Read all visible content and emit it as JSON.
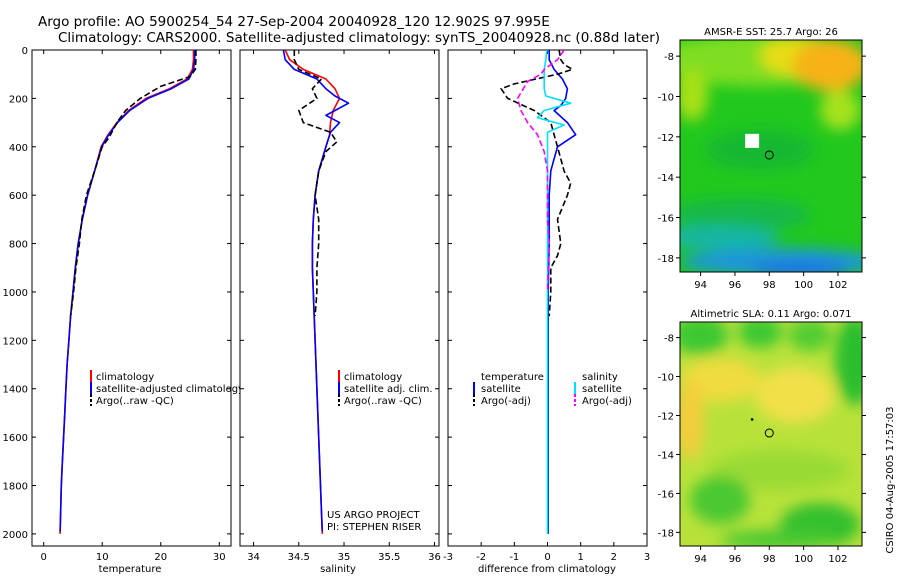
{
  "header": {
    "title_line1": "Argo profile: AO 5900254_54 27-Sep-2004 20040928_120 12.902S 97.995E",
    "title_line2": "Climatology: CARS2000. Satellite-adjusted climatology: synTS_20040928.nc (0.88d later)"
  },
  "footer": {
    "credit": "CSIRO 04-Aug-2005 17:57:03",
    "project_line1": "US ARGO PROJECT",
    "project_line2": "PI: STEPHEN RISER"
  },
  "colors": {
    "climatology": "#ff0000",
    "satellite": "#0000ff",
    "argo": "#000000",
    "salinity_satellite": "#00e0ff",
    "salinity_argo": "#ff00ff"
  },
  "chart_data": [
    {
      "type": "line",
      "id": "temperature",
      "xlabel": "temperature",
      "ylabel": "",
      "xlim": [
        -2,
        32
      ],
      "ylim": [
        2050,
        0
      ],
      "xticks": [
        0,
        10,
        20,
        30
      ],
      "yticks": [
        0,
        200,
        400,
        600,
        800,
        1000,
        1200,
        1400,
        1600,
        1800,
        2000
      ],
      "legend": [
        "climatology",
        "satellite-adjusted climatology",
        "Argo(..raw -QC)"
      ],
      "series": [
        {
          "name": "climatology",
          "style": "solid",
          "color": "#ff0000",
          "points": [
            [
              25.6,
              0
            ],
            [
              25.6,
              40
            ],
            [
              25.4,
              80
            ],
            [
              24.5,
              120
            ],
            [
              21.5,
              160
            ],
            [
              17.5,
              200
            ],
            [
              14.5,
              250
            ],
            [
              12.5,
              300
            ],
            [
              11,
              350
            ],
            [
              9.8,
              400
            ],
            [
              8.7,
              500
            ],
            [
              7.5,
              600
            ],
            [
              6.6,
              700
            ],
            [
              5.9,
              800
            ],
            [
              5.4,
              900
            ],
            [
              5,
              1000
            ],
            [
              4.6,
              1100
            ],
            [
              4.3,
              1200
            ],
            [
              4,
              1300
            ],
            [
              3.8,
              1400
            ],
            [
              3.6,
              1500
            ],
            [
              3.4,
              1600
            ],
            [
              3.2,
              1700
            ],
            [
              3,
              1800
            ],
            [
              2.9,
              1900
            ],
            [
              2.8,
              2000
            ]
          ]
        },
        {
          "name": "satellite-adjusted climatology",
          "style": "solid",
          "color": "#0000ff",
          "points": [
            [
              25.8,
              0
            ],
            [
              25.8,
              40
            ],
            [
              25.6,
              80
            ],
            [
              24.8,
              120
            ],
            [
              21.8,
              160
            ],
            [
              17.8,
              200
            ],
            [
              14.7,
              250
            ],
            [
              12.6,
              300
            ],
            [
              11.1,
              350
            ],
            [
              9.9,
              400
            ],
            [
              8.7,
              500
            ],
            [
              7.5,
              600
            ],
            [
              6.6,
              700
            ],
            [
              5.9,
              800
            ],
            [
              5.4,
              900
            ],
            [
              5,
              1000
            ],
            [
              4.6,
              1100
            ],
            [
              4.3,
              1200
            ],
            [
              4,
              1300
            ],
            [
              3.8,
              1400
            ],
            [
              3.6,
              1500
            ],
            [
              3.4,
              1600
            ],
            [
              3.2,
              1700
            ],
            [
              3,
              1800
            ],
            [
              2.9,
              1900
            ],
            [
              2.8,
              1990
            ]
          ]
        },
        {
          "name": "Argo(..raw -QC)",
          "style": "dashed",
          "color": "#000000",
          "points": [
            [
              26,
              0
            ],
            [
              26,
              40
            ],
            [
              25.9,
              80
            ],
            [
              25,
              110
            ],
            [
              20,
              150
            ],
            [
              16.5,
              200
            ],
            [
              14,
              250
            ],
            [
              12.5,
              300
            ],
            [
              11.2,
              360
            ],
            [
              10,
              400
            ],
            [
              8.7,
              500
            ],
            [
              7.3,
              600
            ],
            [
              6.5,
              700
            ],
            [
              6.1,
              800
            ],
            [
              5.5,
              900
            ],
            [
              5.1,
              1000
            ],
            [
              4.6,
              1100
            ]
          ]
        }
      ]
    },
    {
      "type": "line",
      "id": "salinity",
      "xlabel": "salinity",
      "ylabel": "",
      "xlim": [
        33.85,
        36.05
      ],
      "ylim": [
        2050,
        0
      ],
      "xticks": [
        34,
        34.5,
        35,
        35.5,
        36
      ],
      "yticks": [
        0,
        200,
        400,
        600,
        800,
        1000,
        1200,
        1400,
        1600,
        1800,
        2000
      ],
      "legend": [
        "climatology",
        "satellite adj. clim.",
        "Argo(..raw -QC)"
      ],
      "series": [
        {
          "name": "climatology",
          "style": "solid",
          "color": "#ff0000",
          "points": [
            [
              34.35,
              0
            ],
            [
              34.4,
              40
            ],
            [
              34.55,
              80
            ],
            [
              34.8,
              120
            ],
            [
              34.9,
              160
            ],
            [
              34.95,
              200
            ],
            [
              34.88,
              250
            ],
            [
              34.85,
              300
            ],
            [
              34.84,
              350
            ],
            [
              34.8,
              400
            ],
            [
              34.72,
              500
            ],
            [
              34.68,
              600
            ],
            [
              34.66,
              700
            ],
            [
              34.65,
              800
            ],
            [
              34.65,
              900
            ],
            [
              34.66,
              1000
            ],
            [
              34.67,
              1100
            ],
            [
              34.68,
              1200
            ],
            [
              34.69,
              1300
            ],
            [
              34.7,
              1400
            ],
            [
              34.71,
              1500
            ],
            [
              34.72,
              1600
            ],
            [
              34.73,
              1700
            ],
            [
              34.74,
              1800
            ],
            [
              34.75,
              1900
            ],
            [
              34.76,
              2000
            ]
          ]
        },
        {
          "name": "satellite adj. clim.",
          "style": "solid",
          "color": "#0000ff",
          "points": [
            [
              34.33,
              0
            ],
            [
              34.35,
              40
            ],
            [
              34.45,
              80
            ],
            [
              34.7,
              120
            ],
            [
              34.8,
              160
            ],
            [
              34.9,
              190
            ],
            [
              35.05,
              220
            ],
            [
              34.9,
              250
            ],
            [
              34.8,
              270
            ],
            [
              34.95,
              300
            ],
            [
              34.85,
              340
            ],
            [
              34.8,
              400
            ],
            [
              34.72,
              500
            ],
            [
              34.68,
              600
            ],
            [
              34.66,
              700
            ],
            [
              34.65,
              800
            ],
            [
              34.65,
              900
            ],
            [
              34.66,
              1000
            ],
            [
              34.67,
              1100
            ],
            [
              34.68,
              1200
            ],
            [
              34.69,
              1300
            ],
            [
              34.7,
              1400
            ],
            [
              34.71,
              1500
            ],
            [
              34.72,
              1600
            ],
            [
              34.73,
              1700
            ],
            [
              34.74,
              1800
            ],
            [
              34.75,
              1900
            ],
            [
              34.76,
              1990
            ]
          ]
        },
        {
          "name": "Argo(..raw -QC)",
          "style": "dashed",
          "color": "#000000",
          "points": [
            [
              34.45,
              0
            ],
            [
              34.45,
              40
            ],
            [
              34.5,
              80
            ],
            [
              34.75,
              120
            ],
            [
              34.65,
              160
            ],
            [
              34.7,
              200
            ],
            [
              34.5,
              250
            ],
            [
              34.55,
              300
            ],
            [
              34.85,
              340
            ],
            [
              34.92,
              380
            ],
            [
              34.8,
              420
            ],
            [
              34.72,
              500
            ],
            [
              34.68,
              600
            ],
            [
              34.7,
              650
            ],
            [
              34.72,
              700
            ],
            [
              34.72,
              800
            ],
            [
              34.7,
              900
            ],
            [
              34.7,
              1000
            ],
            [
              34.68,
              1100
            ]
          ]
        }
      ]
    },
    {
      "type": "line",
      "id": "difference",
      "xlabel": "difference from climatology",
      "ylabel": "",
      "xlim": [
        -3,
        3
      ],
      "ylim": [
        2050,
        0
      ],
      "xticks": [
        -3,
        -2,
        -1,
        0,
        1,
        2,
        3
      ],
      "yticks": [
        0,
        200,
        400,
        600,
        800,
        1000,
        1200,
        1400,
        1600,
        1800,
        2000
      ],
      "legend_left": [
        "temperature",
        "satellite",
        "Argo(-adj)"
      ],
      "legend_right": [
        "salinity",
        "satellite",
        "Argo(-adj)"
      ],
      "series": [
        {
          "name": "temperature satellite",
          "style": "solid",
          "color": "#0000ff",
          "points": [
            [
              0.05,
              0
            ],
            [
              0.05,
              40
            ],
            [
              0.2,
              80
            ],
            [
              0.45,
              120
            ],
            [
              0.6,
              160
            ],
            [
              0.55,
              200
            ],
            [
              0.4,
              230
            ],
            [
              0.2,
              250
            ],
            [
              0.6,
              300
            ],
            [
              0.85,
              350
            ],
            [
              0.3,
              400
            ],
            [
              0.2,
              450
            ],
            [
              0.1,
              500
            ],
            [
              0.05,
              600
            ],
            [
              0.05,
              800
            ],
            [
              0.02,
              1000
            ],
            [
              0.02,
              2000
            ]
          ]
        },
        {
          "name": "temperature Argo(-adj)",
          "style": "dashed",
          "color": "#000000",
          "points": [
            [
              0.35,
              0
            ],
            [
              0.4,
              40
            ],
            [
              0.5,
              60
            ],
            [
              0.75,
              80
            ],
            [
              0.3,
              100
            ],
            [
              -1,
              140
            ],
            [
              -1.4,
              160
            ],
            [
              -1.2,
              200
            ],
            [
              -0.4,
              250
            ],
            [
              0.1,
              300
            ],
            [
              0.2,
              350
            ],
            [
              0.3,
              400
            ],
            [
              0.4,
              450
            ],
            [
              0.5,
              500
            ],
            [
              0.7,
              550
            ],
            [
              0.6,
              600
            ],
            [
              0.3,
              700
            ],
            [
              0.4,
              800
            ],
            [
              0.3,
              850
            ],
            [
              0.1,
              900
            ],
            [
              0.1,
              1000
            ],
            [
              0.05,
              1100
            ]
          ]
        },
        {
          "name": "salinity satellite",
          "style": "solid",
          "color": "#00e0ff",
          "points": [
            [
              -0.02,
              0
            ],
            [
              -0.05,
              40
            ],
            [
              -0.1,
              80
            ],
            [
              -0.1,
              120
            ],
            [
              -0.1,
              160
            ],
            [
              -0.05,
              190
            ],
            [
              0.7,
              220
            ],
            [
              -0.1,
              250
            ],
            [
              -0.3,
              280
            ],
            [
              0.5,
              310
            ],
            [
              0,
              340
            ],
            [
              0,
              400
            ],
            [
              0,
              500
            ],
            [
              0,
              800
            ],
            [
              0,
              1200
            ],
            [
              0,
              2000
            ]
          ]
        },
        {
          "name": "salinity Argo(-adj)",
          "style": "dashed",
          "color": "#ff00ff",
          "points": [
            [
              0.5,
              0
            ],
            [
              0.3,
              40
            ],
            [
              -0.1,
              80
            ],
            [
              -0.2,
              100
            ],
            [
              -0.6,
              130
            ],
            [
              -0.9,
              200
            ],
            [
              -0.8,
              250
            ],
            [
              -0.6,
              300
            ],
            [
              -0.3,
              350
            ],
            [
              -0.1,
              420
            ],
            [
              0,
              500
            ],
            [
              0,
              700
            ],
            [
              0.05,
              800
            ],
            [
              0,
              1000
            ]
          ]
        }
      ]
    },
    {
      "type": "heatmap",
      "id": "sst_map",
      "title": "AMSR-E SST: 25.7 Argo: 26",
      "xlim": [
        92.8,
        103.4
      ],
      "ylim": [
        -18.7,
        -7.2
      ],
      "xticks": [
        94,
        96,
        98,
        100,
        102
      ],
      "yticks": [
        -8,
        -10,
        -12,
        -14,
        -16,
        -18
      ],
      "marker": {
        "lon": 98.0,
        "lat": -12.9
      },
      "track_point": {
        "lon": 97.0,
        "lat": -12.2
      }
    },
    {
      "type": "heatmap",
      "id": "sla_map",
      "title": "Altimetric SLA: 0.11 Argo: 0.071",
      "xlim": [
        92.8,
        103.4
      ],
      "ylim": [
        -18.7,
        -7.2
      ],
      "xticks": [
        94,
        96,
        98,
        100,
        102
      ],
      "yticks": [
        -8,
        -10,
        -12,
        -14,
        -16,
        -18
      ],
      "marker": {
        "lon": 98.0,
        "lat": -12.9
      },
      "track_point": {
        "lon": 97.0,
        "lat": -12.2
      }
    }
  ]
}
